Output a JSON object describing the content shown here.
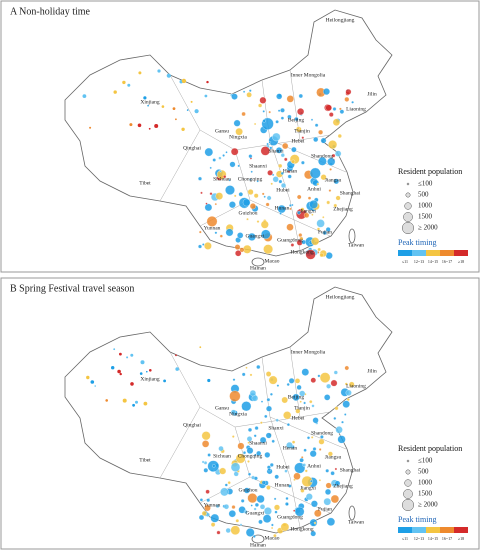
{
  "panels": [
    {
      "title": "A  Non-holiday time"
    },
    {
      "title": "B  Spring Festival travel season"
    }
  ],
  "provinces": [
    "Heilongjiang",
    "Inner Mongolia",
    "Jilin",
    "Xinjiang",
    "Liaoning",
    "Beijing",
    "Tianjin",
    "Gansu",
    "Ningxia",
    "Hebei",
    "Qinghai",
    "Shanxi",
    "Shandong",
    "Shaanxi",
    "Henan",
    "Tibet",
    "Jiangsu",
    "Sichuan",
    "Chongqing",
    "Hubei",
    "Anhui",
    "Shanghai",
    "Hunan",
    "Jiangxi",
    "Zhejiang",
    "Guizhou",
    "Yunnan",
    "Fujian",
    "Guangxi",
    "Guangdong",
    "Taiwan",
    "Hongkong",
    "Macao",
    "Hainan"
  ],
  "legend": {
    "population_title": "Resident population",
    "population_labels": [
      "≤100",
      "500",
      "1000",
      "1500",
      "≥ 2000"
    ],
    "peak_title": "Peak timing",
    "peak_labels": [
      "≤11",
      "12~13",
      "14~15",
      "16~17",
      "≥18"
    ],
    "peak_colors": [
      "#1e9fe6",
      "#62c3f2",
      "#f4c542",
      "#ee8a2e",
      "#d42a2a"
    ]
  }
}
